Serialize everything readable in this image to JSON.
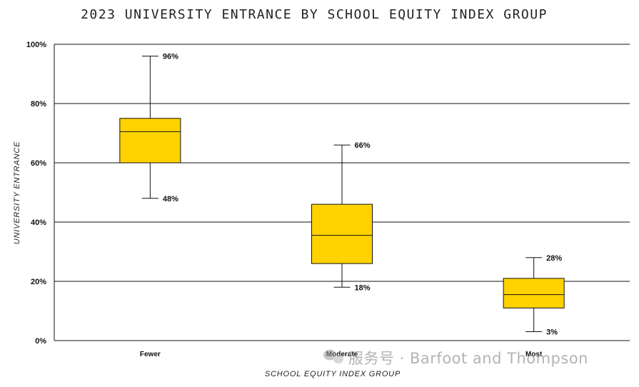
{
  "chart_data": {
    "type": "box",
    "title": "2023 UNIVERSITY ENTRANCE BY SCHOOL EQUITY INDEX GROUP",
    "xlabel": "SCHOOL EQUITY INDEX GROUP",
    "ylabel": "UNIVERSITY ENTRANCE",
    "ylim": [
      0,
      100
    ],
    "yticks": [
      0,
      20,
      40,
      60,
      80,
      100
    ],
    "ytick_labels": [
      "0%",
      "20%",
      "40%",
      "60%",
      "80%",
      "100%"
    ],
    "grid": true,
    "box_color": "#FFD200",
    "categories": [
      "Fewer",
      "Moderate",
      "Most"
    ],
    "boxes": [
      {
        "category": "Fewer",
        "min": 48,
        "q1": 60,
        "median": 70.5,
        "q3": 75,
        "max": 96,
        "min_label": "48%",
        "max_label": "96%"
      },
      {
        "category": "Moderate",
        "min": 18,
        "q1": 26,
        "median": 35.5,
        "q3": 46,
        "max": 66,
        "min_label": "18%",
        "max_label": "66%"
      },
      {
        "category": "Most",
        "min": 3,
        "q1": 11,
        "median": 15.5,
        "q3": 21,
        "max": 28,
        "min_label": "3%",
        "max_label": "28%"
      }
    ]
  },
  "watermark": {
    "text": "服务号 · Barfoot and Thompson"
  }
}
